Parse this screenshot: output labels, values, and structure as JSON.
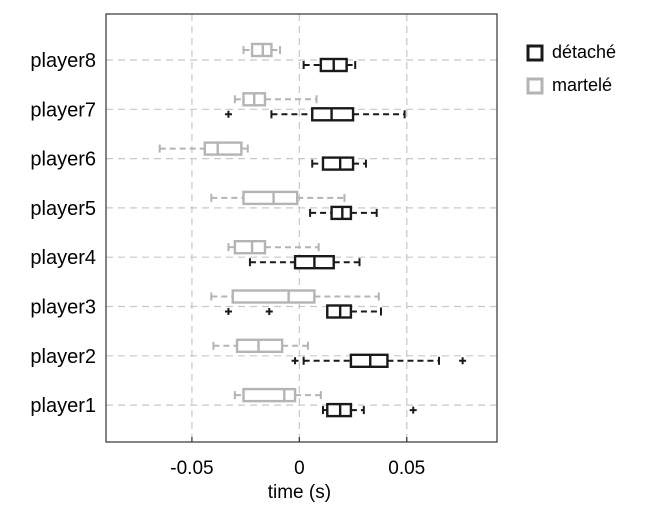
{
  "chart_data": {
    "type": "boxplot",
    "title": "",
    "xlabel": "time (s)",
    "ylabel": "",
    "xlim": [
      -0.09,
      0.092
    ],
    "xticks": [
      -0.05,
      0,
      0.05
    ],
    "xtick_labels": [
      "-0.05",
      "0",
      "0.05"
    ],
    "grid": true,
    "legend_position": "top-right",
    "categories": [
      "player1",
      "player2",
      "player3",
      "player4",
      "player5",
      "player6",
      "player7",
      "player8"
    ],
    "series": [
      {
        "name": "détaché",
        "color": "#1a1a1a",
        "boxes": [
          {
            "category": "player1",
            "whisker_low": 0.011,
            "q1": 0.013,
            "median": 0.019,
            "q3": 0.024,
            "whisker_high": 0.03,
            "outliers": [
              0.053
            ]
          },
          {
            "category": "player2",
            "whisker_low": 0.002,
            "q1": 0.024,
            "median": 0.033,
            "q3": 0.041,
            "whisker_high": 0.065,
            "outliers": [
              -0.002,
              0.076
            ]
          },
          {
            "category": "player3",
            "whisker_low": 0.013,
            "q1": 0.013,
            "median": 0.019,
            "q3": 0.024,
            "whisker_high": 0.038,
            "outliers": [
              -0.033,
              -0.014
            ]
          },
          {
            "category": "player4",
            "whisker_low": -0.023,
            "q1": -0.002,
            "median": 0.007,
            "q3": 0.016,
            "whisker_high": 0.028,
            "outliers": []
          },
          {
            "category": "player5",
            "whisker_low": 0.005,
            "q1": 0.015,
            "median": 0.02,
            "q3": 0.024,
            "whisker_high": 0.036,
            "outliers": []
          },
          {
            "category": "player6",
            "whisker_low": 0.006,
            "q1": 0.011,
            "median": 0.019,
            "q3": 0.025,
            "whisker_high": 0.031,
            "outliers": []
          },
          {
            "category": "player7",
            "whisker_low": -0.013,
            "q1": 0.006,
            "median": 0.015,
            "q3": 0.025,
            "whisker_high": 0.049,
            "outliers": [
              -0.033
            ]
          },
          {
            "category": "player8",
            "whisker_low": 0.002,
            "q1": 0.01,
            "median": 0.016,
            "q3": 0.022,
            "whisker_high": 0.026,
            "outliers": []
          }
        ]
      },
      {
        "name": "martelé",
        "color": "#b4b4b4",
        "boxes": [
          {
            "category": "player1",
            "whisker_low": -0.03,
            "q1": -0.026,
            "median": -0.007,
            "q3": -0.002,
            "whisker_high": 0.01,
            "outliers": []
          },
          {
            "category": "player2",
            "whisker_low": -0.04,
            "q1": -0.029,
            "median": -0.019,
            "q3": -0.008,
            "whisker_high": 0.004,
            "outliers": []
          },
          {
            "category": "player3",
            "whisker_low": -0.041,
            "q1": -0.031,
            "median": -0.005,
            "q3": 0.007,
            "whisker_high": 0.037,
            "outliers": []
          },
          {
            "category": "player4",
            "whisker_low": -0.033,
            "q1": -0.03,
            "median": -0.022,
            "q3": -0.016,
            "whisker_high": 0.009,
            "outliers": []
          },
          {
            "category": "player5",
            "whisker_low": -0.041,
            "q1": -0.026,
            "median": -0.012,
            "q3": -0.001,
            "whisker_high": 0.021,
            "outliers": []
          },
          {
            "category": "player6",
            "whisker_low": -0.065,
            "q1": -0.044,
            "median": -0.038,
            "q3": -0.027,
            "whisker_high": -0.024,
            "outliers": []
          },
          {
            "category": "player7",
            "whisker_low": -0.03,
            "q1": -0.026,
            "median": -0.021,
            "q3": -0.016,
            "whisker_high": 0.008,
            "outliers": []
          },
          {
            "category": "player8",
            "whisker_low": -0.026,
            "q1": -0.022,
            "median": -0.017,
            "q3": -0.013,
            "whisker_high": -0.009,
            "outliers": []
          }
        ]
      }
    ]
  }
}
